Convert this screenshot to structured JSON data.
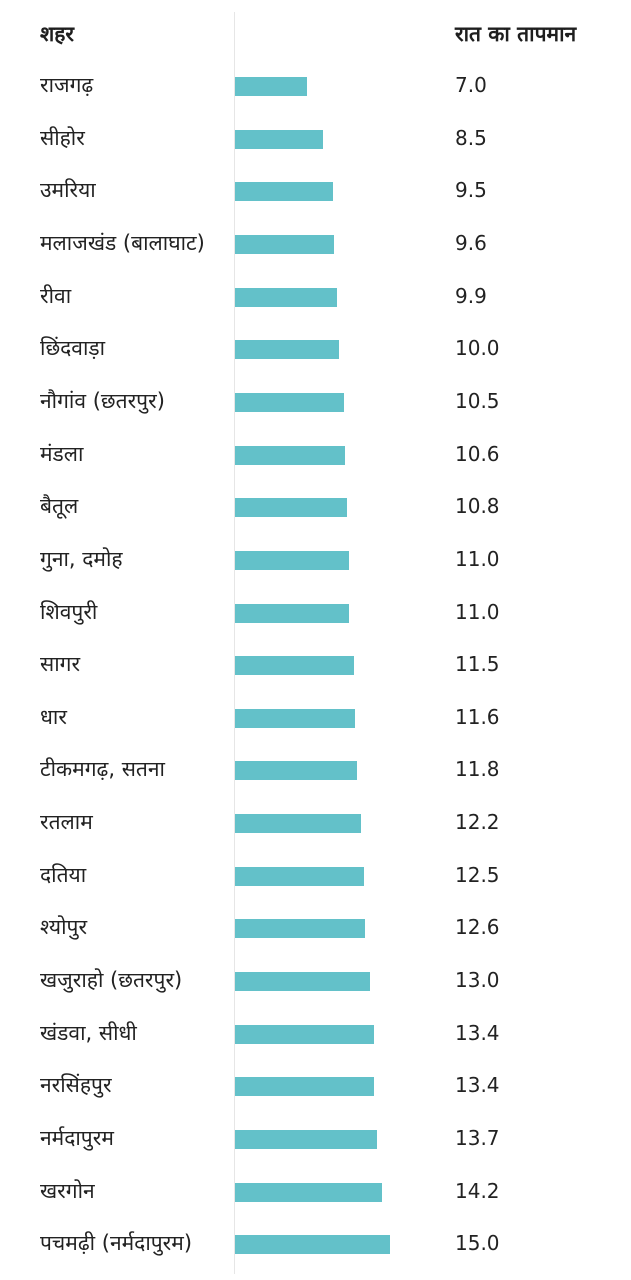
{
  "chart_data": {
    "type": "bar",
    "orientation": "horizontal",
    "column_headers": {
      "category": "शहर",
      "value": "रात का तापमान"
    },
    "categories": [
      "राजगढ़",
      "सीहोर",
      "उमरिया",
      "मलाजखंड (बालाघाट)",
      "रीवा",
      "छिंदवाड़ा",
      "नौगांव (छतरपुर)",
      "मंडला",
      "बैतूल",
      "गुना, दमोह",
      "शिवपुरी",
      "सागर",
      "धार",
      "टीकमगढ़, सतना",
      "रतलाम",
      "दतिया",
      "श्योपुर",
      "खजुराहो (छतरपुर)",
      "खंडवा, सीधी",
      "नरसिंहपुर",
      "नर्मदापुरम",
      "खरगोन",
      "पचमढ़ी (नर्मदापुरम)"
    ],
    "values": [
      7.0,
      8.5,
      9.5,
      9.6,
      9.9,
      10.0,
      10.5,
      10.6,
      10.8,
      11.0,
      11.0,
      11.5,
      11.6,
      11.8,
      12.2,
      12.5,
      12.6,
      13.0,
      13.4,
      13.4,
      13.7,
      14.2,
      15.0
    ],
    "value_labels": [
      "7.0",
      "8.5",
      "9.5",
      "9.6",
      "9.9",
      "10.0",
      "10.5",
      "10.6",
      "10.8",
      "11.0",
      "11.0",
      "11.5",
      "11.6",
      "11.8",
      "12.2",
      "12.5",
      "12.6",
      "13.0",
      "13.4",
      "13.4",
      "13.7",
      "14.2",
      "15.0"
    ],
    "bar_color": "#63c1c9",
    "grid": false,
    "legend": "none"
  }
}
